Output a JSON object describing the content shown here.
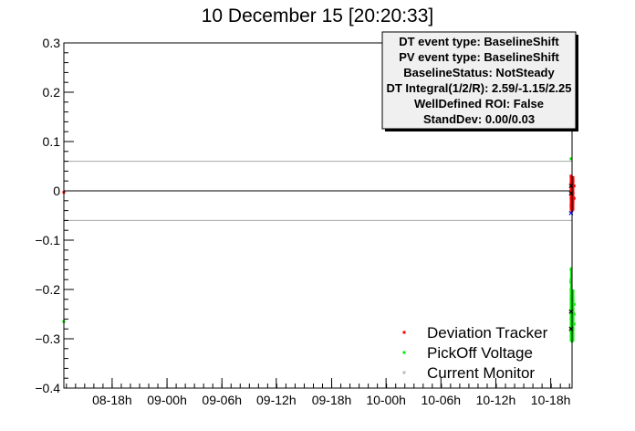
{
  "chart_data": {
    "type": "scatter",
    "title": "10 December 15 [20:20:33]",
    "xlabel": "",
    "ylabel": "",
    "ylim": [
      -0.4,
      0.3
    ],
    "y_ticks": [
      {
        "value": 0.3,
        "label": "0.3"
      },
      {
        "value": 0.2,
        "label": "0.2"
      },
      {
        "value": 0.1,
        "label": "0.1"
      },
      {
        "value": 0.0,
        "label": "0"
      },
      {
        "value": -0.1,
        "label": "−0.1"
      },
      {
        "value": -0.2,
        "label": "−0.2"
      },
      {
        "value": -0.3,
        "label": "−0.3"
      },
      {
        "value": -0.4,
        "label": "−0.4"
      }
    ],
    "x_ticks": [
      {
        "value": 0.095,
        "label": "08-18h"
      },
      {
        "value": 0.203,
        "label": "09-00h"
      },
      {
        "value": 0.311,
        "label": "09-06h"
      },
      {
        "value": 0.418,
        "label": "09-12h"
      },
      {
        "value": 0.527,
        "label": "09-18h"
      },
      {
        "value": 0.634,
        "label": "10-00h"
      },
      {
        "value": 0.742,
        "label": "10-06h"
      },
      {
        "value": 0.85,
        "label": "10-12h"
      },
      {
        "value": 0.958,
        "label": "10-18h"
      }
    ],
    "reference_lines": {
      "zero": 0.0,
      "upper": 0.06,
      "lower": -0.06
    },
    "series": [
      {
        "name": "Deviation Tracker",
        "color": "#ff0000",
        "points": [
          {
            "x": 0.0,
            "y": -0.003
          },
          {
            "x": 0.998,
            "y": 0.03
          },
          {
            "x": 0.998,
            "y": 0.015
          },
          {
            "x": 0.998,
            "y": 0.0
          },
          {
            "x": 0.998,
            "y": -0.015
          },
          {
            "x": 0.998,
            "y": -0.03
          },
          {
            "x": 1.0,
            "y": 0.025
          },
          {
            "x": 1.0,
            "y": 0.005
          },
          {
            "x": 1.0,
            "y": -0.01
          },
          {
            "x": 1.0,
            "y": -0.028
          },
          {
            "x": 1.0,
            "y": -0.04
          },
          {
            "x": 1.002,
            "y": 0.02
          },
          {
            "x": 1.002,
            "y": -0.005
          },
          {
            "x": 1.002,
            "y": -0.02
          },
          {
            "x": 1.004,
            "y": 0.01
          },
          {
            "x": 1.004,
            "y": -0.015
          },
          {
            "x": 0.998,
            "y": -0.185
          }
        ]
      },
      {
        "name": "PickOff Voltage",
        "color": "#00ee00",
        "points": [
          {
            "x": 0.0,
            "y": -0.265
          },
          {
            "x": 0.998,
            "y": 0.065
          },
          {
            "x": 0.998,
            "y": -0.16
          },
          {
            "x": 0.998,
            "y": -0.18
          },
          {
            "x": 0.998,
            "y": -0.2
          },
          {
            "x": 0.998,
            "y": -0.22
          },
          {
            "x": 0.998,
            "y": -0.24
          },
          {
            "x": 0.998,
            "y": -0.26
          },
          {
            "x": 0.998,
            "y": -0.28
          },
          {
            "x": 1.0,
            "y": -0.21
          },
          {
            "x": 1.0,
            "y": -0.23
          },
          {
            "x": 1.0,
            "y": -0.25
          },
          {
            "x": 1.0,
            "y": -0.27
          },
          {
            "x": 1.0,
            "y": -0.29
          },
          {
            "x": 1.0,
            "y": -0.305
          },
          {
            "x": 1.002,
            "y": -0.22
          },
          {
            "x": 1.002,
            "y": -0.24
          },
          {
            "x": 1.002,
            "y": -0.26
          },
          {
            "x": 1.002,
            "y": -0.28
          },
          {
            "x": 1.004,
            "y": -0.23
          },
          {
            "x": 1.004,
            "y": -0.25
          },
          {
            "x": 1.004,
            "y": -0.27
          }
        ]
      },
      {
        "name": "Current Monitor",
        "color": "#bbbbbb",
        "points": []
      }
    ],
    "markers": [
      {
        "x": 0.998,
        "y": 0.01,
        "color": "#000000"
      },
      {
        "x": 0.998,
        "y": -0.005,
        "color": "#000000"
      },
      {
        "x": 0.998,
        "y": -0.045,
        "color": "#0000ff"
      },
      {
        "x": 0.998,
        "y": -0.245,
        "color": "#000000"
      },
      {
        "x": 0.998,
        "y": -0.28,
        "color": "#000000"
      }
    ],
    "legend": {
      "placement": "bottom-right",
      "entries": [
        {
          "name": "Deviation Tracker",
          "color": "#ff0000"
        },
        {
          "name": "PickOff Voltage",
          "color": "#00ee00"
        },
        {
          "name": "Current Monitor",
          "color": "#bbbbbb"
        }
      ]
    },
    "stats_box": {
      "placement": "top-right",
      "lines": [
        "DT event type: BaselineShift",
        "PV event type: BaselineShift",
        "BaselineStatus: NotSteady",
        "DT Integral(1/2/R): 2.59/-1.15/2.25",
        "WellDefined ROI: False",
        "StandDev: 0.00/0.03"
      ]
    }
  }
}
